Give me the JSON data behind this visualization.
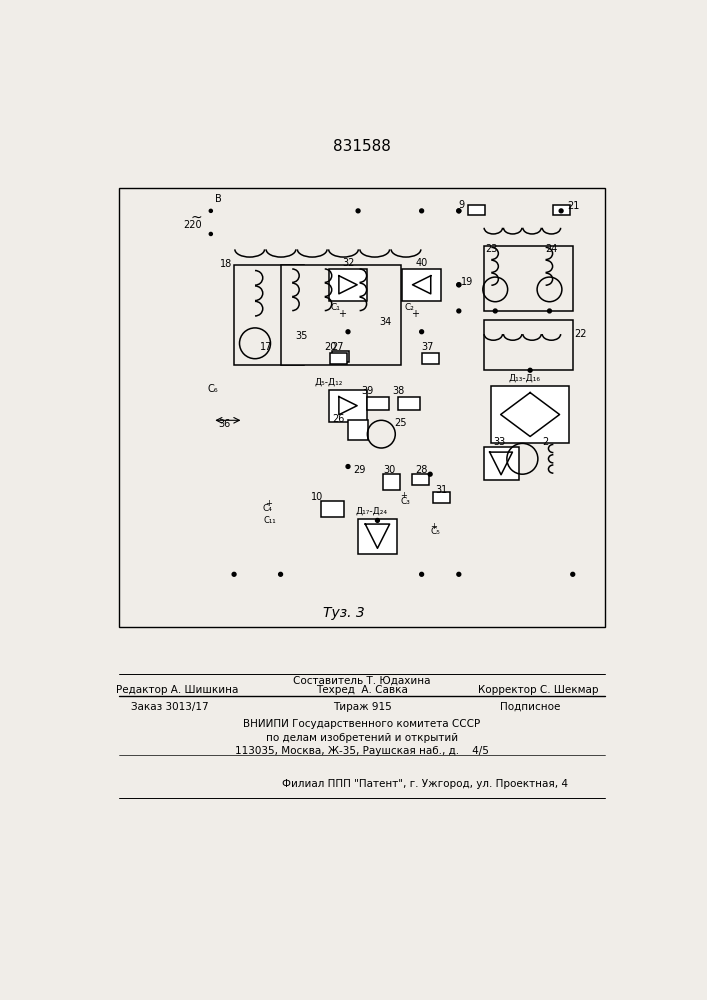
{
  "patent_number": "831588",
  "fig_label": "Τуз. 3",
  "bg": "#f0ede8",
  "lw": 1.1,
  "footer": {
    "sestavitel": "Составитель Т. Юдахина",
    "redaktor": "Редактор А. Шишкина",
    "tekhred": "Техред  А. Савка",
    "korrektor": "Корректор С. Шекмар",
    "zakaz": "Заказ 3013/17",
    "tirazh": "Тираж 915",
    "podpisnoe": "Подписное",
    "vniip1": "ВНИИПИ Государственного комитета СССР",
    "vniip2": "по делам изобретений и открытий",
    "addr": "113035, Москва, Ж-35, Раушская наб., д.    4/5",
    "filial": "Филиал ППП \"Патент\", г. Ужгород, ул. Проектная, 4"
  }
}
